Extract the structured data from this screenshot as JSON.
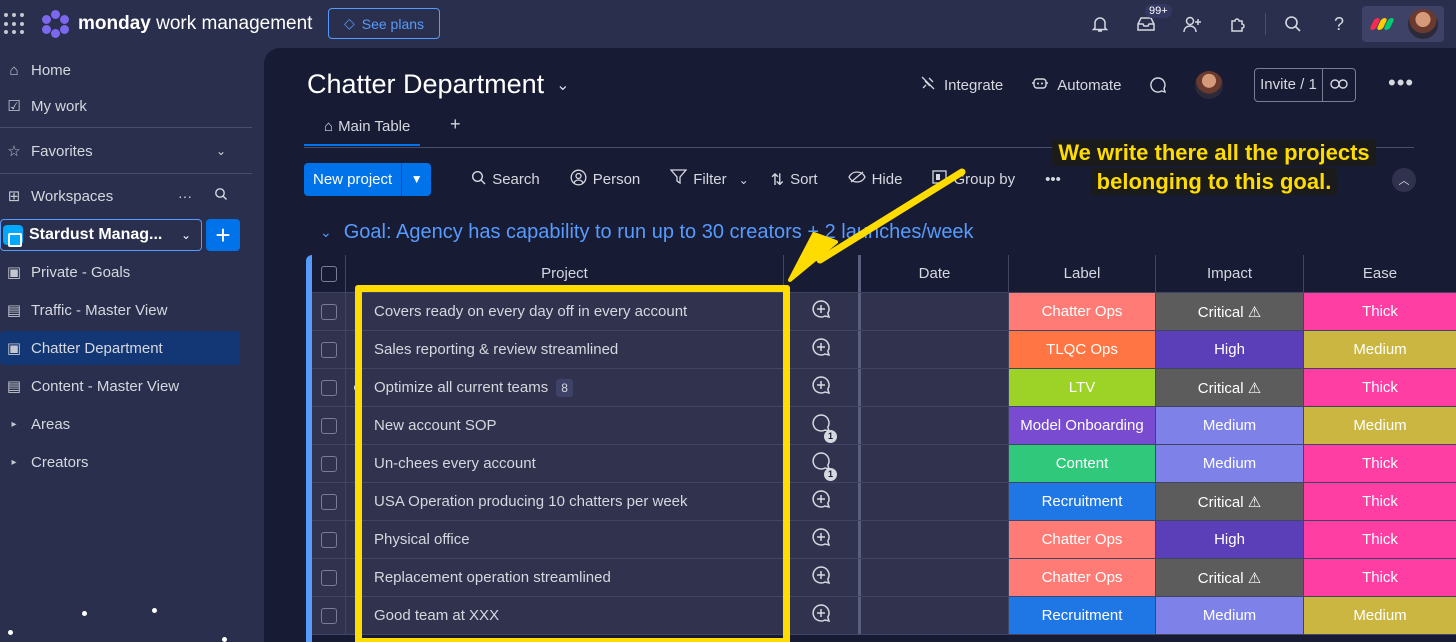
{
  "topbar": {
    "brand_bold": "monday",
    "brand_rest": "work management",
    "see_plans": "See plans",
    "inbox_badge": "99+"
  },
  "sidebar": {
    "items": [
      {
        "label": "Home",
        "icon": "home-icon"
      },
      {
        "label": "My work",
        "icon": "calendar-check-icon"
      },
      {
        "label": "Favorites",
        "icon": "star-icon"
      },
      {
        "label": "Workspaces",
        "icon": "grid-icon"
      }
    ],
    "workspace_name": "Stardust Manag...",
    "boards": [
      {
        "label": "Private - Goals",
        "icon": "private-board-icon"
      },
      {
        "label": "Traffic - Master View",
        "icon": "dashboard-icon"
      },
      {
        "label": "Chatter Department",
        "icon": "private-board-icon",
        "active": true
      },
      {
        "label": "Content - Master View",
        "icon": "dashboard-icon"
      },
      {
        "label": "Areas",
        "icon": "chevron-right-icon"
      },
      {
        "label": "Creators",
        "icon": "chevron-right-icon"
      }
    ]
  },
  "board": {
    "title": "Chatter Department",
    "actions": {
      "integrate": "Integrate",
      "automate": "Automate"
    },
    "invite": "Invite / 1",
    "tab_main": "Main Table",
    "tab_add": "+"
  },
  "toolbar": {
    "new_project": "New project",
    "search": "Search",
    "person": "Person",
    "filter": "Filter",
    "sort": "Sort",
    "hide": "Hide",
    "group_by": "Group by"
  },
  "group": {
    "title": "Goal: Agency has capability to run up to 30 creators + 2 launches/week",
    "color": "#579bfc"
  },
  "table": {
    "columns": {
      "project": "Project",
      "date": "Date",
      "label": "Label",
      "impact": "Impact",
      "ease": "Ease"
    },
    "rows": [
      {
        "project": "Covers ready on every day off in every account",
        "label": "Chatter Ops",
        "label_color": "#ff7b75",
        "impact": "Critical ⚠",
        "impact_color": "#5c5c5c",
        "ease": "Thick",
        "ease_color": "#ff3ea4",
        "updates": ""
      },
      {
        "project": "Sales reporting & review streamlined",
        "label": "TLQC Ops",
        "label_color": "#ff7543",
        "impact": "High",
        "impact_color": "#5b3fb8",
        "ease": "Medium",
        "ease_color": "#cab641",
        "updates": ""
      },
      {
        "project": "Optimize all current teams",
        "subitems": "8",
        "label": "LTV",
        "label_color": "#9cd326",
        "impact": "Critical ⚠",
        "impact_color": "#5c5c5c",
        "ease": "Thick",
        "ease_color": "#ff3ea4",
        "updates": ""
      },
      {
        "project": "New account SOP",
        "label": "Model Onboarding",
        "label_color": "#784bd1",
        "impact": "Medium",
        "impact_color": "#7e82e8",
        "ease": "Medium",
        "ease_color": "#cab641",
        "updates": "1"
      },
      {
        "project": "Un-chees every account",
        "label": "Content",
        "label_color": "#30c97c",
        "impact": "Medium",
        "impact_color": "#7e82e8",
        "ease": "Thick",
        "ease_color": "#ff3ea4",
        "updates": "1"
      },
      {
        "project": "USA Operation producing 10 chatters per week",
        "label": "Recruitment",
        "label_color": "#1f76e5",
        "impact": "Critical ⚠",
        "impact_color": "#5c5c5c",
        "ease": "Thick",
        "ease_color": "#ff3ea4",
        "updates": ""
      },
      {
        "project": "Physical office",
        "label": "Chatter Ops",
        "label_color": "#ff7b75",
        "impact": "High",
        "impact_color": "#5b3fb8",
        "ease": "Thick",
        "ease_color": "#ff3ea4",
        "updates": ""
      },
      {
        "project": "Replacement operation streamlined",
        "label": "Chatter Ops",
        "label_color": "#ff7b75",
        "impact": "Critical ⚠",
        "impact_color": "#5c5c5c",
        "ease": "Thick",
        "ease_color": "#ff3ea4",
        "updates": ""
      },
      {
        "project": "Good team at XXX",
        "label": "Recruitment",
        "label_color": "#1f76e5",
        "impact": "Medium",
        "impact_color": "#7e82e8",
        "ease": "Medium",
        "ease_color": "#cab641",
        "updates": ""
      }
    ]
  },
  "annotation": {
    "line1": "We write there all the projects",
    "line2": "belonging to this goal.",
    "color": "#ffdc00"
  }
}
